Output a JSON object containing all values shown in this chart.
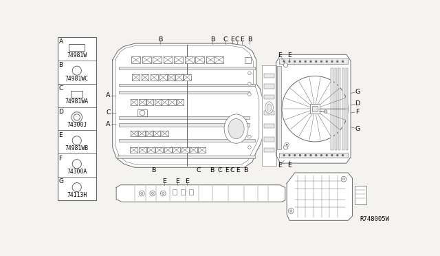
{
  "bg_color": "#f5f3f0",
  "panel_bg": "#ffffff",
  "lc": "#666666",
  "lc_dark": "#444444",
  "fill_light": "#e8e8e8",
  "fill_mid": "#d8d8d8",
  "ref_code": "R748005W",
  "legend_items": [
    {
      "label": "A",
      "part": "74981W",
      "shape": "rect"
    },
    {
      "label": "B",
      "part": "74981WC",
      "shape": "circle_thin"
    },
    {
      "label": "C",
      "part": "74981WA",
      "shape": "rect_small"
    },
    {
      "label": "D",
      "part": "74300J",
      "shape": "circle_double"
    },
    {
      "label": "E",
      "part": "74981WB",
      "shape": "circle_thin"
    },
    {
      "label": "F",
      "part": "74300A",
      "shape": "circle_thin"
    },
    {
      "label": "G",
      "part": "74113H",
      "shape": "circle_thin"
    }
  ]
}
